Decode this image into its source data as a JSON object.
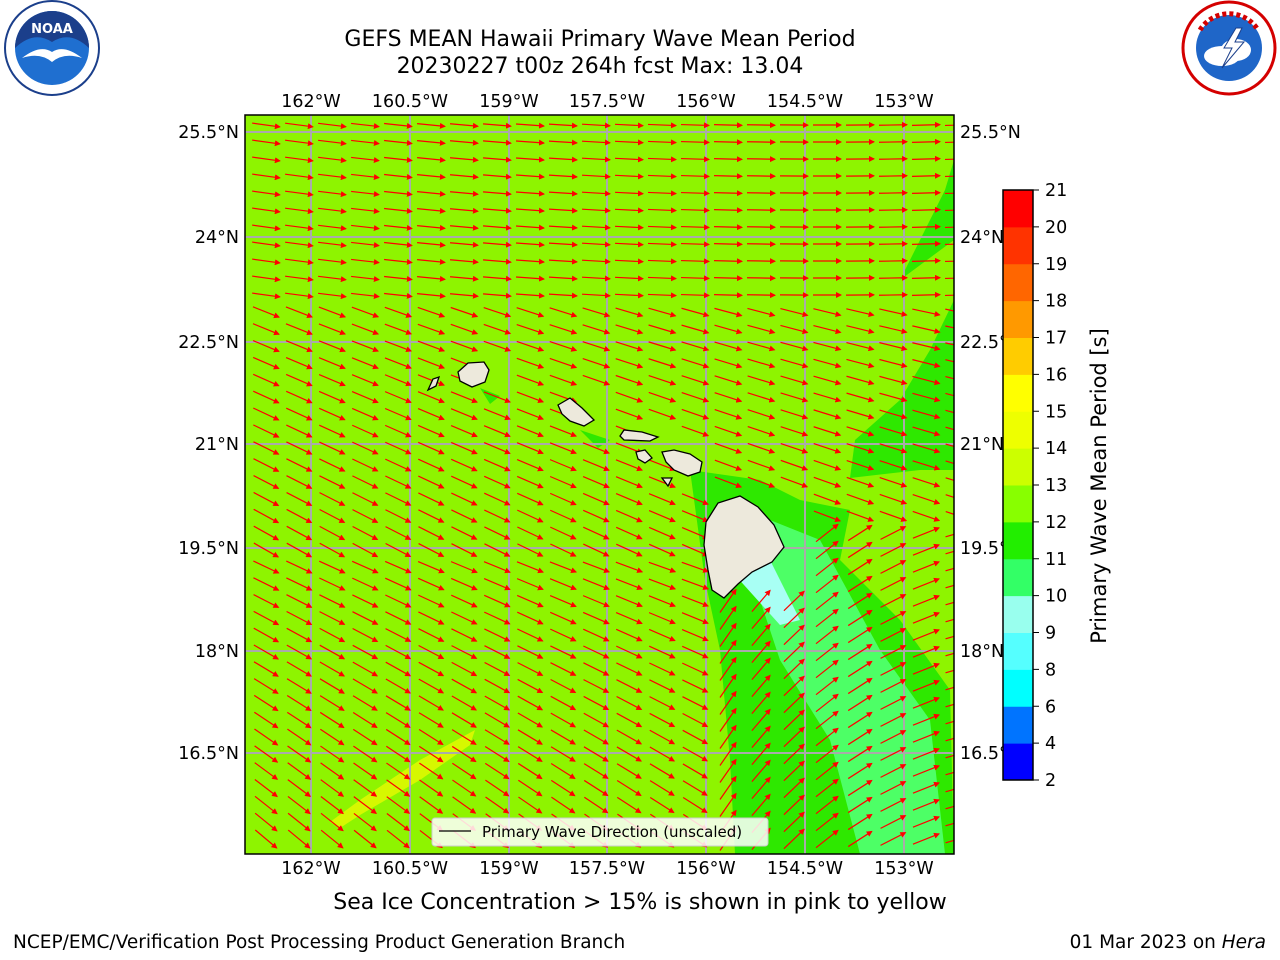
{
  "title": {
    "line1": "GEFS MEAN Hawaii Primary Wave Mean Period",
    "line2": "20230227 t00z 264h fcst   Max: 13.04"
  },
  "logos": {
    "left": {
      "name": "NOAA",
      "ring_text": "NATIONAL OCEANIC AND ATMOSPHERIC ADMINISTRATION",
      "bottom_text": "U.S. DEPARTMENT OF COMMERCE",
      "icon": "noaa-bird-icon"
    },
    "right": {
      "name": "NATIONAL WEATHER SERVICE",
      "icon": "nws-cloud-lightning-icon"
    }
  },
  "map": {
    "lon_ticks": [
      "162°W",
      "160.5°W",
      "159°W",
      "157.5°W",
      "156°W",
      "154.5°W",
      "153°W"
    ],
    "lat_ticks": [
      "25.5°N",
      "24°N",
      "22.5°N",
      "21°N",
      "19.5°N",
      "18°N",
      "16.5°N"
    ],
    "legend_label": "Primary Wave Direction (unscaled)",
    "colors": {
      "dominant_fill": "#8ef400",
      "island_fill": "#ede9dc",
      "arrow": "#ff0000",
      "gridline": "#aaaaaa"
    }
  },
  "colorbar": {
    "label": "Primary Wave Mean Period [s]",
    "ticks": [
      "2",
      "4",
      "6",
      "8",
      "9",
      "10",
      "11",
      "12",
      "13",
      "14",
      "15",
      "16",
      "17",
      "18",
      "19",
      "20",
      "21"
    ],
    "colors": [
      "#0000ff",
      "#0074ff",
      "#00ffff",
      "#55ffff",
      "#99ffee",
      "#33ff66",
      "#22ee00",
      "#88ff00",
      "#ccff00",
      "#eeff00",
      "#ffff00",
      "#ffcc00",
      "#ff9900",
      "#ff6600",
      "#ff3300",
      "#ff0000"
    ]
  },
  "note": "Sea Ice Concentration > 15% is shown in pink to yellow",
  "footer": {
    "left": "NCEP/EMC/Verification Post Processing Product Generation Branch",
    "right_prefix": "01 Mar 2023 on ",
    "right_italic": "Hera"
  }
}
